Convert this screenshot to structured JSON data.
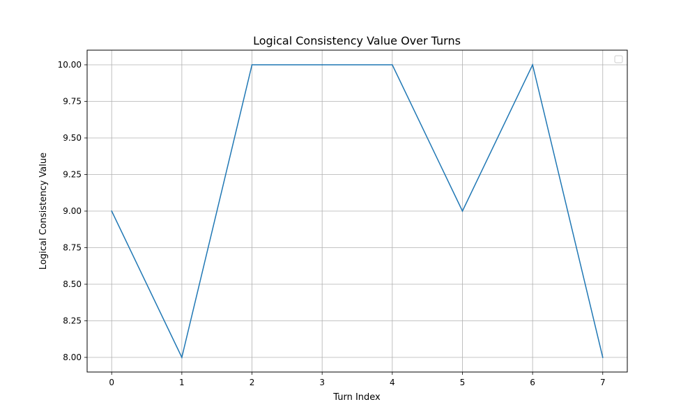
{
  "chart_data": {
    "type": "line",
    "title": "Logical Consistency Value Over Turns",
    "xlabel": "Turn Index",
    "ylabel": "Logical Consistency Value",
    "x": [
      0,
      1,
      2,
      3,
      4,
      5,
      6,
      7
    ],
    "series": [
      {
        "values": [
          9.0,
          8.0,
          10.0,
          10.0,
          10.0,
          9.0,
          10.0,
          8.0
        ],
        "color": "#1f77b4"
      }
    ],
    "xticks": [
      0,
      1,
      2,
      3,
      4,
      5,
      6,
      7
    ],
    "xtick_labels": [
      "0",
      "1",
      "2",
      "3",
      "4",
      "5",
      "6",
      "7"
    ],
    "yticks": [
      8.0,
      8.25,
      8.5,
      8.75,
      9.0,
      9.25,
      9.5,
      9.75,
      10.0
    ],
    "ytick_labels": [
      "8.00",
      "8.25",
      "8.50",
      "8.75",
      "9.00",
      "9.25",
      "9.50",
      "9.75",
      "10.00"
    ],
    "xlim": [
      -0.35,
      7.35
    ],
    "ylim": [
      7.9,
      10.1
    ],
    "grid": true,
    "legend": "top-right, empty",
    "grid_color": "#b0b0b0",
    "axis_color": "#000000"
  }
}
